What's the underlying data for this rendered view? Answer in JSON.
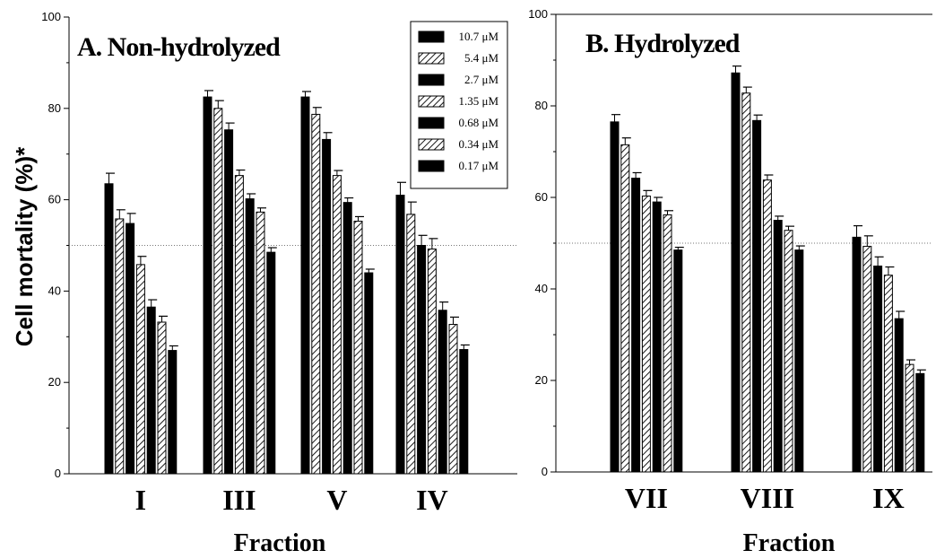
{
  "ylabel": "Cell mortality (%)*",
  "legend": [
    "10.7 μM",
    "5.4 μM",
    "2.7 μM",
    "1.35 μM",
    "0.68 μM",
    "0.34 μM",
    "0.17 μM"
  ],
  "series_patterns": [
    "solid",
    "hatch",
    "solid",
    "hatch",
    "solid",
    "hatch",
    "solid"
  ],
  "reference_line": 50,
  "chart_data": [
    {
      "type": "bar",
      "title": "A. Non-hydrolyzed",
      "xlabel": "Fraction",
      "ylabel": "Cell mortality (%)*",
      "ylim": [
        0,
        100
      ],
      "yticks": [
        0,
        20,
        40,
        60,
        80,
        100
      ],
      "categories": [
        "I",
        "III",
        "V",
        "IV"
      ],
      "series": [
        {
          "name": "10.7 μM",
          "values": [
            63.5,
            82.5,
            82.5,
            61.0
          ],
          "errors": [
            2.3,
            1.4,
            1.2,
            2.8
          ]
        },
        {
          "name": "5.4 μM",
          "values": [
            55.8,
            80.0,
            78.7,
            56.8
          ],
          "errors": [
            2.0,
            1.7,
            1.5,
            2.7
          ]
        },
        {
          "name": "2.7 μM",
          "values": [
            54.8,
            75.3,
            73.2,
            50.0
          ],
          "errors": [
            2.2,
            1.5,
            1.5,
            2.2
          ]
        },
        {
          "name": "1.35 μM",
          "values": [
            45.8,
            65.3,
            65.3,
            49.2
          ],
          "errors": [
            1.8,
            1.2,
            1.1,
            2.3
          ]
        },
        {
          "name": "0.68 μM",
          "values": [
            36.5,
            60.2,
            59.4,
            35.8
          ],
          "errors": [
            1.6,
            1.1,
            1.0,
            1.8
          ]
        },
        {
          "name": "0.34 μM",
          "values": [
            33.2,
            57.3,
            55.3,
            32.7
          ],
          "errors": [
            1.3,
            0.9,
            1.0,
            1.6
          ]
        },
        {
          "name": "0.17 μM",
          "values": [
            27.0,
            48.5,
            44.0,
            27.2
          ],
          "errors": [
            1.0,
            1.0,
            0.8,
            1.0
          ]
        }
      ]
    },
    {
      "type": "bar",
      "title": "B. Hydrolyzed",
      "xlabel": "Fraction",
      "ylabel": "",
      "ylim": [
        0,
        100
      ],
      "yticks": [
        0,
        20,
        40,
        60,
        80,
        100
      ],
      "categories": [
        "VII",
        "VIII",
        "IX"
      ],
      "series": [
        {
          "name": "10.7 μM",
          "values": [
            76.5,
            87.2,
            51.3
          ],
          "errors": [
            1.6,
            1.5,
            2.5
          ]
        },
        {
          "name": "5.4 μM",
          "values": [
            71.5,
            82.8,
            49.3
          ],
          "errors": [
            1.5,
            1.3,
            2.3
          ]
        },
        {
          "name": "2.7 μM",
          "values": [
            64.2,
            76.8,
            45.0
          ],
          "errors": [
            1.2,
            1.2,
            2.0
          ]
        },
        {
          "name": "1.35 μM",
          "values": [
            60.3,
            63.8,
            43.0
          ],
          "errors": [
            1.2,
            1.1,
            1.8
          ]
        },
        {
          "name": "0.68 μM",
          "values": [
            59.0,
            55.0,
            33.5
          ],
          "errors": [
            1.0,
            0.9,
            1.6
          ]
        },
        {
          "name": "0.34 μM",
          "values": [
            56.2,
            52.8,
            23.5
          ],
          "errors": [
            0.9,
            0.9,
            1.0
          ]
        },
        {
          "name": "0.17 μM",
          "values": [
            48.5,
            48.5,
            21.5
          ],
          "errors": [
            0.6,
            0.9,
            0.8
          ]
        }
      ]
    }
  ]
}
